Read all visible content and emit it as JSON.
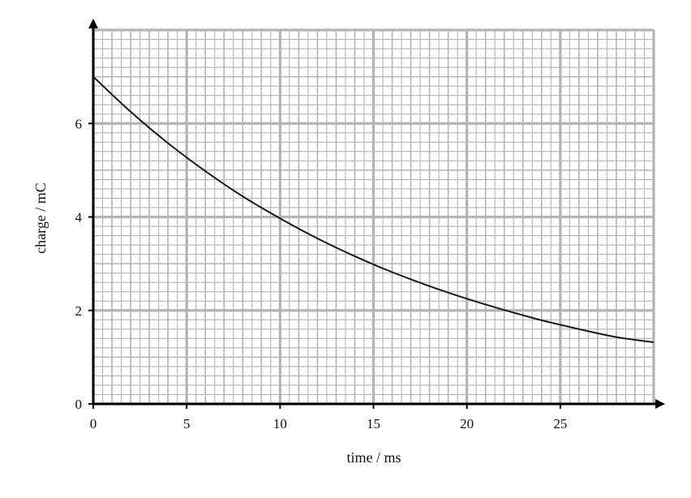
{
  "chart_data": {
    "type": "line",
    "xlabel": "time / ms",
    "ylabel": "charge / mC",
    "xlim": [
      0,
      30
    ],
    "ylim": [
      0,
      8
    ],
    "x_ticks": [
      0,
      5,
      10,
      15,
      20,
      25
    ],
    "y_ticks": [
      0,
      2,
      4,
      6
    ],
    "grid": true,
    "series": [
      {
        "x": [
          0,
          2,
          4,
          6,
          8,
          10,
          12,
          14,
          16,
          18,
          20,
          22,
          24,
          26,
          28,
          30
        ],
        "y": [
          7.0,
          6.25,
          5.58,
          4.98,
          4.44,
          3.97,
          3.54,
          3.16,
          2.82,
          2.52,
          2.25,
          2.01,
          1.79,
          1.6,
          1.43,
          1.32
        ]
      }
    ],
    "colors": {
      "grid": "#b4b4b4",
      "axis": "#000000",
      "line": "#1a1a1a"
    }
  }
}
